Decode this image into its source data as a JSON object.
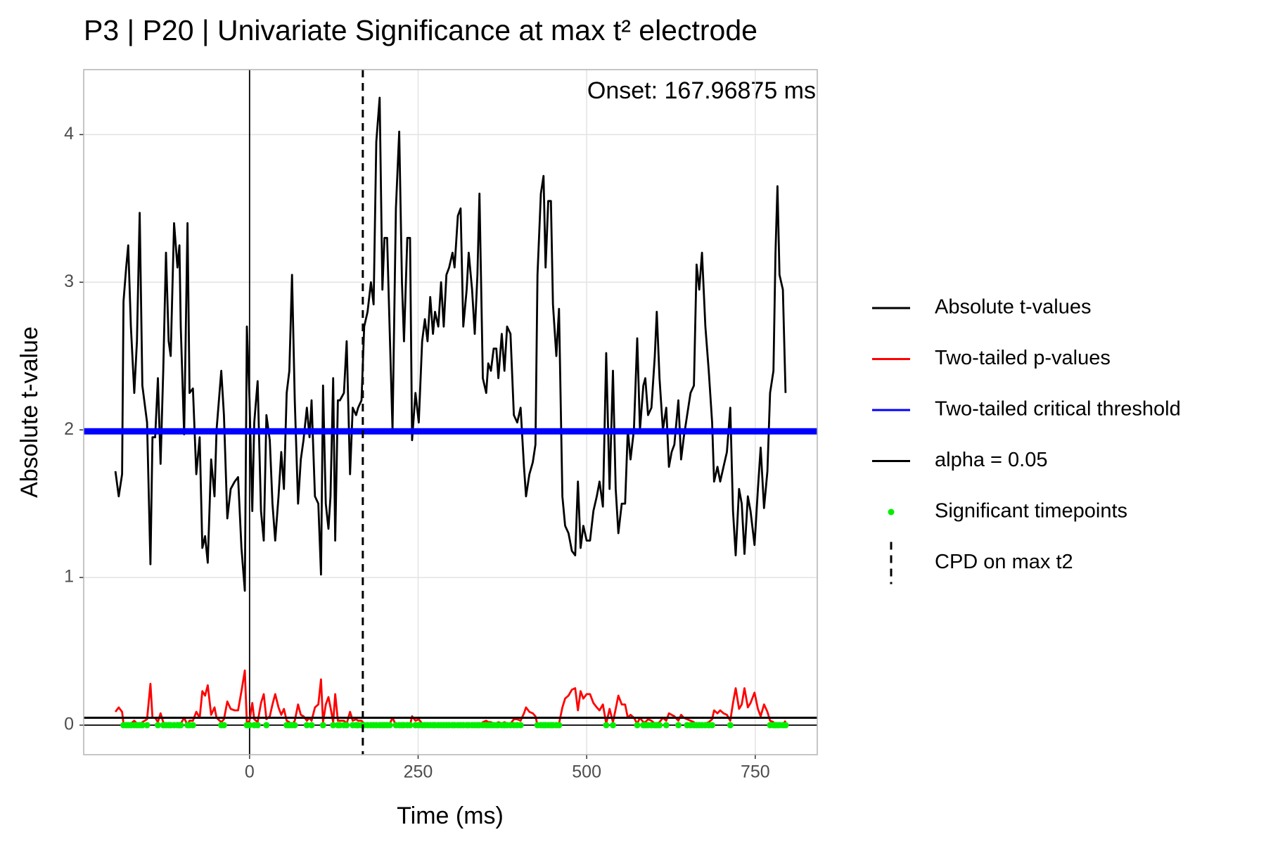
{
  "chart_data": {
    "type": "line",
    "title": "P3 | P20 | Univariate Significance at max t² electrode",
    "xlabel": "Time (ms)",
    "ylabel": "Absolute t-value",
    "annotation": "Onset: 167.96875 ms",
    "xlim": [
      -246,
      842
    ],
    "xticks": [
      0,
      250,
      500,
      750
    ],
    "ylim": [
      -0.2,
      4.44
    ],
    "yticks": [
      0,
      1,
      2,
      3,
      4
    ],
    "grid": true,
    "reference_lines": {
      "x": 0,
      "y": 0
    },
    "x": [
      -199,
      -194,
      -189,
      -187,
      -183,
      -180,
      -176,
      -171,
      -167,
      -163,
      -159,
      -152,
      -147,
      -144,
      -140,
      -136,
      -132,
      -128,
      -124,
      -120,
      -117,
      -112,
      -107,
      -104,
      -102,
      -97,
      -92,
      -89,
      -84,
      -79,
      -74,
      -70,
      -66,
      -62,
      -57,
      -52,
      -49,
      -42,
      -38,
      -33,
      -28,
      -22,
      -17,
      -12,
      -7,
      -4,
      0,
      4,
      7,
      12,
      17,
      21,
      25,
      30,
      34,
      38,
      43,
      47,
      51,
      55,
      59,
      63,
      67,
      72,
      76,
      80,
      85,
      89,
      92,
      97,
      102,
      106,
      109,
      113,
      117,
      120,
      124,
      127,
      131,
      134,
      140,
      144,
      149,
      153,
      158,
      161,
      166,
      170,
      175,
      180,
      184,
      188,
      193,
      197,
      200,
      204,
      208,
      212,
      217,
      222,
      226,
      229,
      234,
      238,
      241,
      246,
      251,
      256,
      260,
      264,
      268,
      272,
      275,
      280,
      284,
      288,
      292,
      296,
      301,
      304,
      309,
      313,
      317,
      322,
      325,
      330,
      334,
      338,
      341,
      346,
      351,
      354,
      358,
      362,
      366,
      369,
      374,
      378,
      382,
      387,
      392,
      397,
      402,
      407,
      410,
      415,
      420,
      424,
      427,
      432,
      436,
      439,
      443,
      447,
      450,
      455,
      459,
      464,
      468,
      473,
      478,
      483,
      487,
      491,
      495,
      500,
      505,
      510,
      515,
      519,
      524,
      529,
      534,
      539,
      543,
      547,
      552,
      557,
      561,
      565,
      570,
      575,
      579,
      584,
      587,
      591,
      596,
      601,
      604,
      608,
      613,
      618,
      622,
      626,
      630,
      636,
      640,
      644,
      649,
      654,
      659,
      663,
      667,
      671,
      676,
      681,
      686,
      689,
      694,
      698,
      703,
      708,
      713,
      717,
      721,
      726,
      730,
      734,
      739,
      743,
      749,
      754,
      758,
      763,
      768,
      772,
      777,
      780,
      783,
      786,
      791,
      795
    ],
    "series": [
      {
        "name": "Absolute t-values",
        "color": "#000000",
        "values": [
          1.72,
          1.55,
          1.7,
          2.87,
          3.1,
          3.25,
          2.7,
          2.25,
          2.6,
          3.47,
          2.3,
          2.05,
          1.09,
          1.95,
          1.95,
          2.35,
          1.77,
          2.4,
          3.2,
          2.6,
          2.5,
          3.4,
          3.1,
          3.25,
          2.7,
          1.97,
          3.4,
          2.25,
          2.28,
          1.7,
          1.95,
          1.2,
          1.28,
          1.1,
          1.8,
          1.55,
          2.0,
          2.4,
          2.1,
          1.4,
          1.6,
          1.65,
          1.68,
          1.2,
          0.91,
          2.7,
          2.2,
          1.45,
          2.05,
          2.33,
          1.45,
          1.25,
          2.1,
          1.93,
          1.5,
          1.25,
          1.55,
          1.85,
          1.6,
          2.25,
          2.4,
          3.05,
          2.2,
          1.5,
          1.8,
          1.93,
          2.15,
          1.95,
          2.2,
          1.55,
          1.5,
          1.02,
          2.3,
          1.5,
          1.33,
          1.55,
          2.35,
          1.25,
          2.2,
          2.2,
          2.25,
          2.6,
          1.7,
          2.15,
          2.1,
          2.15,
          2.2,
          2.7,
          2.8,
          3.0,
          2.85,
          3.95,
          4.25,
          2.95,
          3.3,
          3.3,
          2.65,
          2.0,
          3.5,
          4.02,
          3.0,
          2.6,
          3.3,
          3.3,
          1.93,
          2.25,
          2.05,
          2.6,
          2.75,
          2.6,
          2.9,
          2.65,
          2.8,
          2.7,
          3.0,
          2.7,
          3.05,
          3.1,
          3.2,
          3.1,
          3.45,
          3.5,
          2.7,
          2.95,
          3.2,
          2.95,
          2.65,
          3.05,
          3.6,
          2.35,
          2.25,
          2.45,
          2.4,
          2.55,
          2.55,
          2.35,
          2.65,
          2.4,
          2.7,
          2.65,
          2.1,
          2.05,
          2.15,
          1.75,
          1.55,
          1.7,
          1.78,
          1.9,
          3.05,
          3.6,
          3.72,
          3.1,
          3.55,
          3.55,
          2.85,
          2.5,
          2.82,
          1.55,
          1.35,
          1.3,
          1.18,
          1.15,
          1.65,
          1.2,
          1.35,
          1.25,
          1.25,
          1.45,
          1.55,
          1.65,
          1.48,
          2.52,
          1.6,
          2.4,
          1.6,
          1.3,
          1.5,
          1.5,
          2.0,
          1.8,
          2.0,
          2.62,
          2.0,
          2.3,
          2.35,
          2.1,
          2.15,
          2.5,
          2.8,
          2.35,
          2.0,
          2.15,
          1.75,
          1.85,
          1.9,
          2.2,
          1.8,
          1.95,
          2.1,
          2.25,
          2.3,
          3.12,
          2.95,
          3.2,
          2.7,
          2.4,
          2.05,
          1.65,
          1.75,
          1.65,
          1.75,
          1.85,
          2.15,
          1.45,
          1.15,
          1.6,
          1.5,
          1.16,
          1.55,
          1.45,
          1.22,
          1.6,
          1.88,
          1.47,
          1.72,
          2.25,
          2.4,
          3.2,
          3.65,
          3.05,
          2.95,
          2.25
        ]
      },
      {
        "name": "Two-tailed p-values",
        "color": "#ff0000",
        "values": [
          0.09,
          0.12,
          0.09,
          0.01,
          0,
          0,
          0.01,
          0.03,
          0.01,
          0,
          0.02,
          0.04,
          0.28,
          0.05,
          0.05,
          0.02,
          0.08,
          0.02,
          0,
          0.01,
          0.01,
          0,
          0,
          0,
          0.01,
          0.05,
          0,
          0.03,
          0.03,
          0.09,
          0.05,
          0.23,
          0.2,
          0.27,
          0.07,
          0.12,
          0.05,
          0.02,
          0.04,
          0.16,
          0.11,
          0.1,
          0.1,
          0.23,
          0.37,
          0.01,
          0.03,
          0.15,
          0.04,
          0.02,
          0.15,
          0.21,
          0.04,
          0.06,
          0.14,
          0.21,
          0.12,
          0.07,
          0.11,
          0.03,
          0.02,
          0,
          0.03,
          0.14,
          0.07,
          0.06,
          0.03,
          0.05,
          0.03,
          0.12,
          0.14,
          0.31,
          0.02,
          0.14,
          0.19,
          0.12,
          0.02,
          0.21,
          0.03,
          0.03,
          0.03,
          0.01,
          0.09,
          0.03,
          0.04,
          0.03,
          0.03,
          0.01,
          0.01,
          0,
          0.01,
          0,
          0,
          0,
          0,
          0,
          0.01,
          0.05,
          0,
          0,
          0,
          0.01,
          0,
          0,
          0.06,
          0.03,
          0.04,
          0.01,
          0.01,
          0.01,
          0,
          0.01,
          0.01,
          0.01,
          0,
          0.01,
          0,
          0,
          0,
          0,
          0,
          0,
          0.01,
          0,
          0,
          0,
          0.01,
          0,
          0,
          0.02,
          0.03,
          0.02,
          0.02,
          0.01,
          0.01,
          0.02,
          0.01,
          0.02,
          0.01,
          0.01,
          0.04,
          0.04,
          0.03,
          0.08,
          0.12,
          0.09,
          0.08,
          0.06,
          0,
          0,
          0,
          0,
          0,
          0,
          0.01,
          0.01,
          0.01,
          0.12,
          0.18,
          0.2,
          0.24,
          0.25,
          0.1,
          0.23,
          0.18,
          0.21,
          0.21,
          0.15,
          0.12,
          0.1,
          0.14,
          0.01,
          0.11,
          0.02,
          0.11,
          0.2,
          0.14,
          0.14,
          0.05,
          0.07,
          0.05,
          0.01,
          0.05,
          0.02,
          0.02,
          0.04,
          0.03,
          0.01,
          0.01,
          0.02,
          0.05,
          0.03,
          0.08,
          0.07,
          0.06,
          0.03,
          0.07,
          0.05,
          0.04,
          0.03,
          0.02,
          0,
          0,
          0,
          0.01,
          0.02,
          0.04,
          0.1,
          0.08,
          0.1,
          0.08,
          0.07,
          0.03,
          0.15,
          0.25,
          0.11,
          0.14,
          0.25,
          0.12,
          0.15,
          0.22,
          0.11,
          0.06,
          0.14,
          0.09,
          0.03,
          0.02,
          0,
          0,
          0,
          0,
          0.03
        ]
      },
      {
        "name": "Two-tailed critical threshold",
        "color": "#0000ff",
        "hline": 1.99
      },
      {
        "name": "alpha = 0.05",
        "color": "#000000",
        "hline": 0.05
      },
      {
        "name": "Significant timepoints",
        "color": "#00ee00",
        "style": "points",
        "x": [
          -187,
          -183,
          -180,
          -176,
          -171,
          -167,
          -163,
          -159,
          -152,
          -136,
          -128,
          -124,
          -120,
          -117,
          -112,
          -107,
          -104,
          -102,
          -92,
          -89,
          -84,
          -42,
          -38,
          -4,
          0,
          7,
          12,
          25,
          55,
          59,
          63,
          67,
          85,
          92,
          109,
          124,
          131,
          134,
          140,
          144,
          153,
          158,
          161,
          166,
          170,
          175,
          180,
          184,
          188,
          193,
          197,
          200,
          204,
          208,
          217,
          222,
          226,
          229,
          234,
          238,
          246,
          251,
          256,
          260,
          264,
          268,
          272,
          275,
          280,
          284,
          288,
          292,
          296,
          301,
          304,
          309,
          313,
          317,
          322,
          325,
          330,
          334,
          338,
          341,
          346,
          351,
          354,
          358,
          362,
          366,
          369,
          374,
          378,
          382,
          387,
          392,
          397,
          402,
          427,
          432,
          436,
          439,
          443,
          447,
          450,
          455,
          459,
          529,
          539,
          575,
          584,
          587,
          591,
          596,
          601,
          604,
          608,
          618,
          636,
          649,
          654,
          659,
          663,
          667,
          671,
          676,
          681,
          686,
          713,
          772,
          777,
          780,
          783,
          786,
          791,
          795
        ],
        "values": [
          0,
          0,
          0,
          0,
          0,
          0,
          0,
          0,
          0,
          0,
          0,
          0,
          0,
          0,
          0,
          0,
          0,
          0,
          0,
          0,
          0,
          0,
          0,
          0,
          0,
          0,
          0,
          0,
          0,
          0,
          0,
          0,
          0,
          0,
          0,
          0,
          0,
          0,
          0,
          0,
          0,
          0,
          0,
          0,
          0,
          0,
          0,
          0,
          0,
          0,
          0,
          0,
          0,
          0,
          0,
          0,
          0,
          0,
          0,
          0,
          0,
          0,
          0,
          0,
          0,
          0,
          0,
          0,
          0,
          0,
          0,
          0,
          0,
          0,
          0,
          0,
          0,
          0,
          0,
          0,
          0,
          0,
          0,
          0,
          0,
          0,
          0,
          0,
          0,
          0,
          0,
          0,
          0,
          0,
          0,
          0,
          0,
          0,
          0,
          0,
          0,
          0,
          0,
          0,
          0,
          0,
          0,
          0,
          0,
          0,
          0,
          0,
          0,
          0,
          0,
          0,
          0,
          0,
          0,
          0,
          0,
          0,
          0,
          0,
          0,
          0,
          0,
          0,
          0,
          0,
          0,
          0,
          0,
          0,
          0,
          0
        ]
      },
      {
        "name": "CPD on max t2",
        "color": "#000000",
        "vline": 167.96875,
        "dashed": true
      }
    ]
  }
}
